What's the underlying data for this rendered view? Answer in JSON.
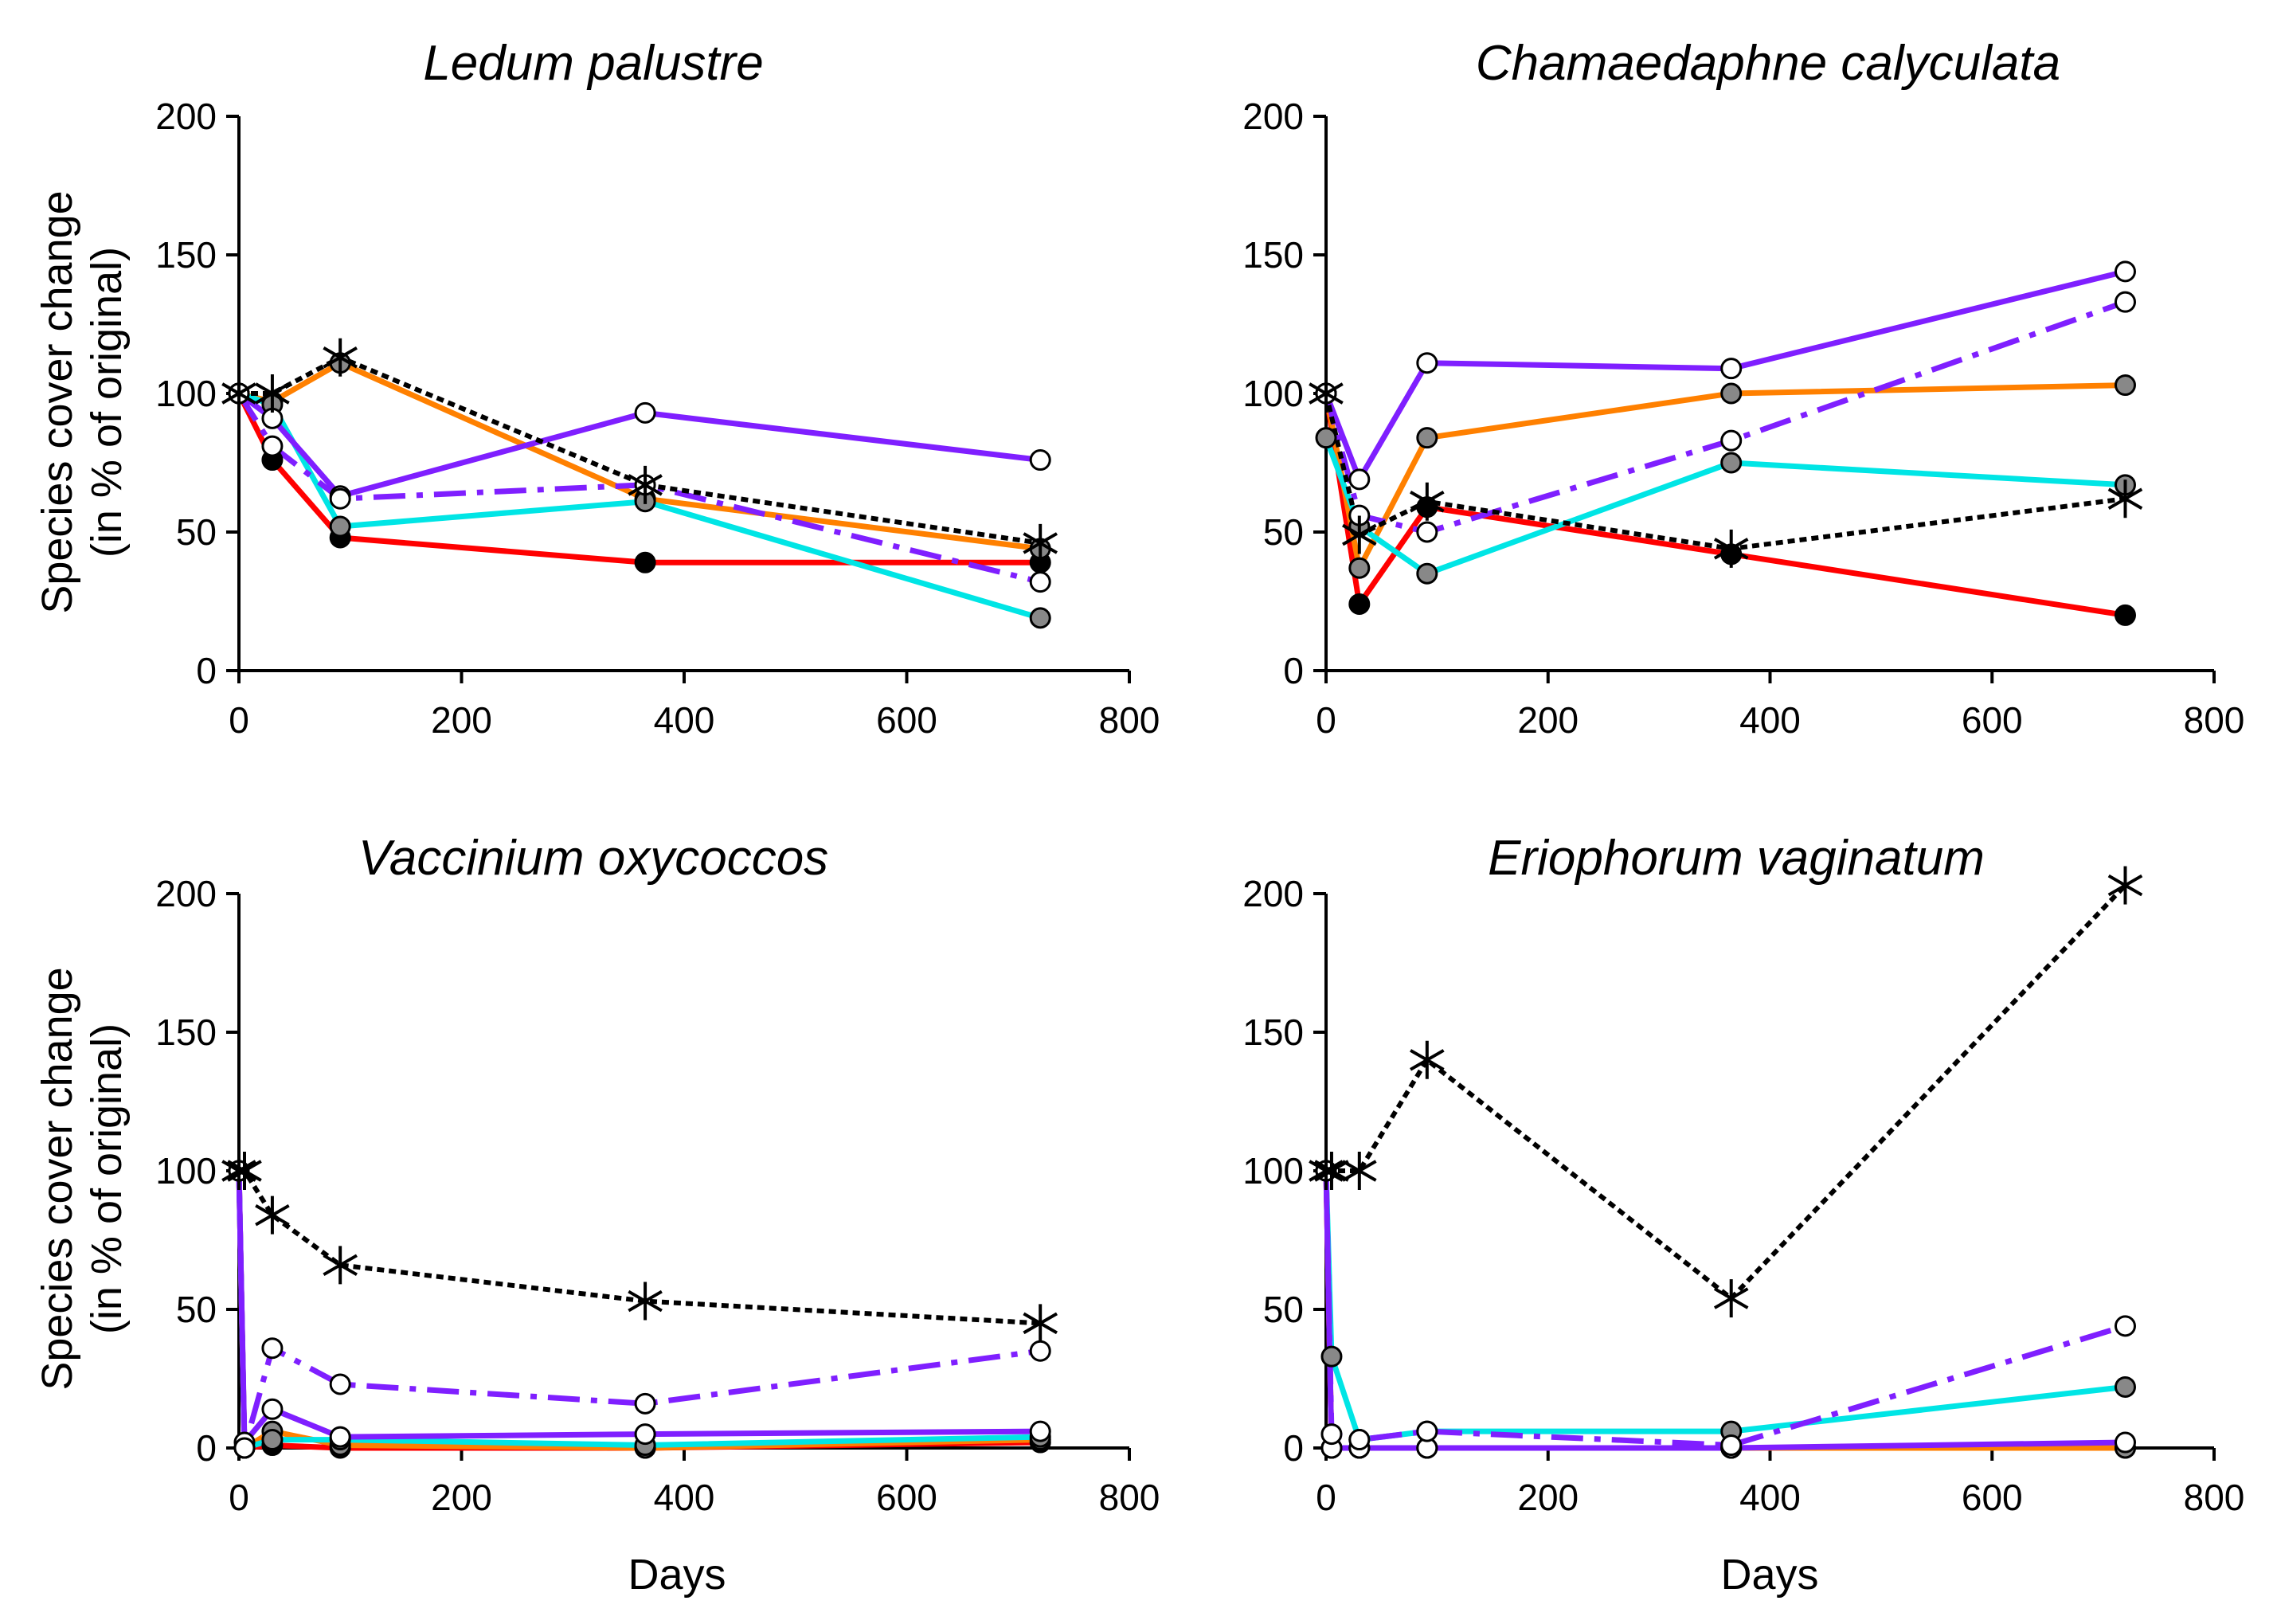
{
  "figure": {
    "ylabel_line1": "Species cover change",
    "ylabel_line2": "(in % of original)",
    "xlabel": "Days"
  },
  "series_styles": [
    {
      "name": "red-filled",
      "color": "#ff0000",
      "dash": "solid",
      "marker": "filled-black"
    },
    {
      "name": "orange-grey",
      "color": "#ff8000",
      "dash": "solid",
      "marker": "filled-grey"
    },
    {
      "name": "cyan-grey",
      "color": "#00e5e5",
      "dash": "solid",
      "marker": "filled-grey"
    },
    {
      "name": "purple-open",
      "color": "#7f1fff",
      "dash": "solid",
      "marker": "open"
    },
    {
      "name": "purple-dashdot-open",
      "color": "#7f1fff",
      "dash": "dashdot",
      "marker": "open"
    },
    {
      "name": "black-dotted-star",
      "color": "#000000",
      "dash": "dotted",
      "marker": "star"
    }
  ],
  "chart_data": [
    {
      "type": "line",
      "title": "Ledum palustre",
      "xlabel": "",
      "ylabel": "Species cover change (in % of original)",
      "xlim": [
        0,
        800
      ],
      "ylim": [
        0,
        200
      ],
      "xticks": [
        "0",
        "200",
        "400",
        "600",
        "800"
      ],
      "yticks": [
        "0",
        "50",
        "100",
        "150",
        "200"
      ],
      "x": [
        0,
        30,
        91,
        365,
        720
      ],
      "series": [
        {
          "name": "red-filled",
          "values": [
            100,
            76,
            48,
            39,
            39
          ]
        },
        {
          "name": "orange-grey",
          "values": [
            100,
            97,
            111,
            62,
            44
          ]
        },
        {
          "name": "cyan-grey",
          "values": [
            100,
            96,
            52,
            61,
            19
          ]
        },
        {
          "name": "purple-open",
          "values": [
            100,
            91,
            63,
            93,
            76
          ]
        },
        {
          "name": "purple-dashdot-open",
          "values": [
            100,
            81,
            62,
            67,
            32
          ]
        },
        {
          "name": "black-dotted-star",
          "values": [
            100,
            100,
            113,
            67,
            46
          ]
        }
      ]
    },
    {
      "type": "line",
      "title": "Chamaedaphne calyculata",
      "xlabel": "",
      "ylabel": "",
      "xlim": [
        0,
        800
      ],
      "ylim": [
        0,
        200
      ],
      "xticks": [
        "0",
        "200",
        "400",
        "600",
        "800"
      ],
      "yticks": [
        "0",
        "50",
        "100",
        "150",
        "200"
      ],
      "x": [
        0,
        30,
        91,
        365,
        720
      ],
      "series": [
        {
          "name": "red-filled",
          "values": [
            100,
            24,
            59,
            42,
            20
          ]
        },
        {
          "name": "orange-grey",
          "values": [
            100,
            37,
            84,
            100,
            103
          ]
        },
        {
          "name": "cyan-grey",
          "values": [
            84,
            52,
            35,
            75,
            67
          ]
        },
        {
          "name": "purple-open",
          "values": [
            100,
            69,
            111,
            109,
            144
          ]
        },
        {
          "name": "purple-dashdot-open",
          "values": [
            100,
            56,
            50,
            83,
            133
          ]
        },
        {
          "name": "black-dotted-star",
          "values": [
            100,
            49,
            61,
            44,
            62
          ]
        }
      ]
    },
    {
      "type": "line",
      "title": "Vaccinium oxycoccos",
      "xlabel": "Days",
      "ylabel": "Species cover change (in % of original)",
      "xlim": [
        0,
        800
      ],
      "ylim": [
        0,
        200
      ],
      "xticks": [
        "0",
        "200",
        "400",
        "600",
        "800"
      ],
      "yticks": [
        "0",
        "50",
        "100",
        "150",
        "200"
      ],
      "x": [
        0,
        5,
        30,
        91,
        365,
        720
      ],
      "series": [
        {
          "name": "red-filled",
          "values": [
            100,
            0,
            1,
            0,
            0,
            2
          ]
        },
        {
          "name": "orange-grey",
          "values": [
            100,
            0,
            6,
            1,
            0,
            3
          ]
        },
        {
          "name": "cyan-grey",
          "values": [
            100,
            0,
            3,
            3,
            1,
            4
          ]
        },
        {
          "name": "purple-open",
          "values": [
            100,
            2,
            14,
            4,
            5,
            6
          ]
        },
        {
          "name": "purple-dashdot-open",
          "values": [
            100,
            0,
            36,
            23,
            16,
            35
          ]
        },
        {
          "name": "black-dotted-star",
          "values": [
            100,
            100,
            84,
            66,
            53,
            45
          ]
        }
      ]
    },
    {
      "type": "line",
      "title": "Eriophorum vaginatum",
      "xlabel": "Days",
      "ylabel": "",
      "xlim": [
        0,
        800
      ],
      "ylim": [
        0,
        200
      ],
      "xticks": [
        "0",
        "200",
        "400",
        "600",
        "800"
      ],
      "yticks": [
        "0",
        "50",
        "100",
        "150",
        "200"
      ],
      "x": [
        0,
        5,
        30,
        91,
        365,
        720
      ],
      "series": [
        {
          "name": "red-filled",
          "values": [
            100,
            0,
            0,
            0,
            0,
            0
          ]
        },
        {
          "name": "orange-grey",
          "values": [
            100,
            0,
            0,
            0,
            0,
            0
          ]
        },
        {
          "name": "cyan-grey",
          "values": [
            100,
            33,
            3,
            6,
            6,
            22
          ]
        },
        {
          "name": "purple-open",
          "values": [
            100,
            0,
            0,
            0,
            0,
            2
          ]
        },
        {
          "name": "purple-dashdot-open",
          "values": [
            100,
            5,
            3,
            6,
            1,
            44
          ]
        },
        {
          "name": "black-dotted-star",
          "values": [
            100,
            100,
            100,
            140,
            54,
            203
          ]
        }
      ]
    }
  ]
}
